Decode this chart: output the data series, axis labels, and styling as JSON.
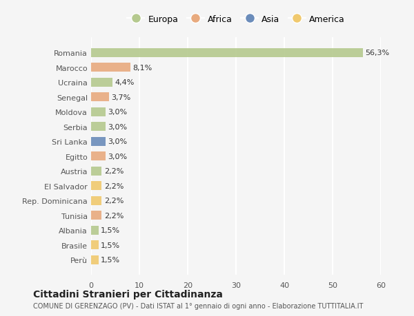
{
  "countries": [
    "Romania",
    "Marocco",
    "Ucraina",
    "Senegal",
    "Moldova",
    "Serbia",
    "Sri Lanka",
    "Egitto",
    "Austria",
    "El Salvador",
    "Rep. Dominicana",
    "Tunisia",
    "Albania",
    "Brasile",
    "Perù"
  ],
  "values": [
    56.3,
    8.1,
    4.4,
    3.7,
    3.0,
    3.0,
    3.0,
    3.0,
    2.2,
    2.2,
    2.2,
    2.2,
    1.5,
    1.5,
    1.5
  ],
  "labels": [
    "56,3%",
    "8,1%",
    "4,4%",
    "3,7%",
    "3,0%",
    "3,0%",
    "3,0%",
    "3,0%",
    "2,2%",
    "2,2%",
    "2,2%",
    "2,2%",
    "1,5%",
    "1,5%",
    "1,5%"
  ],
  "continents": [
    "Europa",
    "Africa",
    "Europa",
    "Africa",
    "Europa",
    "Europa",
    "Asia",
    "Africa",
    "Europa",
    "America",
    "America",
    "Africa",
    "Europa",
    "America",
    "America"
  ],
  "colors": {
    "Europa": "#b5c98e",
    "Africa": "#e8aa7e",
    "Asia": "#6b8cba",
    "America": "#f0c96e"
  },
  "background_color": "#f5f5f5",
  "grid_color": "#ffffff",
  "title": "Cittadini Stranieri per Cittadinanza",
  "subtitle": "COMUNE DI GERENZAGO (PV) - Dati ISTAT al 1° gennaio di ogni anno - Elaborazione TUTTITALIA.IT",
  "xlim": [
    0,
    60
  ],
  "xticks": [
    0,
    10,
    20,
    30,
    40,
    50,
    60
  ],
  "legend_order": [
    "Europa",
    "Africa",
    "Asia",
    "America"
  ]
}
